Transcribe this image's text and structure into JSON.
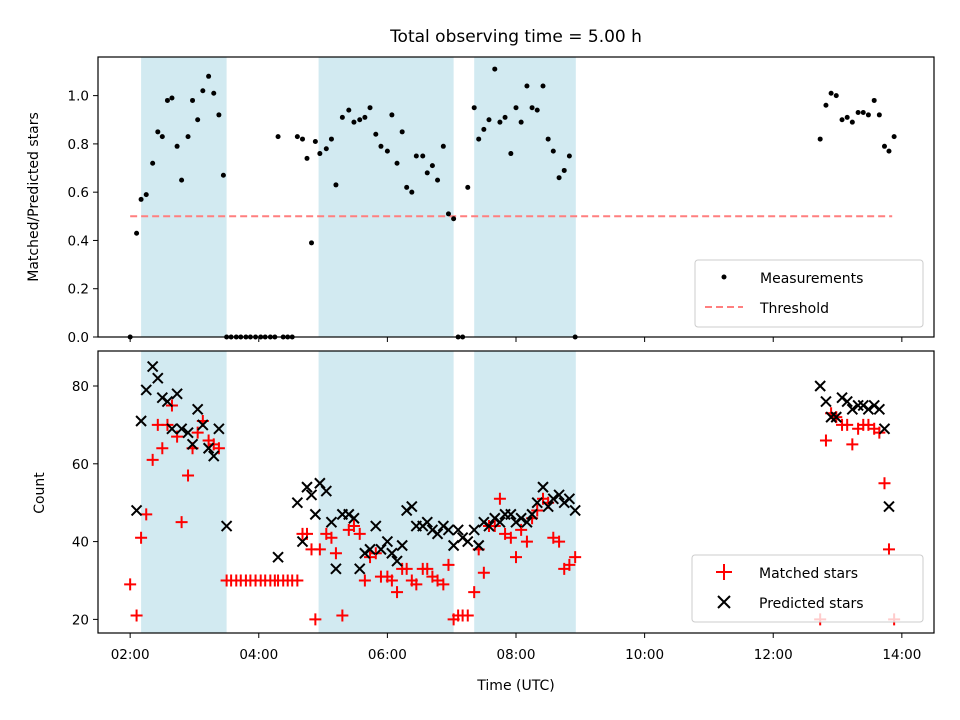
{
  "chart_data": {
    "title": "Total observing time = 5.00 h",
    "xlabel": "Time (UTC)",
    "x_ticks": [
      "02:00",
      "04:00",
      "06:00",
      "08:00",
      "10:00",
      "12:00",
      "14:00"
    ],
    "xlim_hours": [
      1.5,
      14.5
    ],
    "shaded_intervals_hours": [
      [
        2.17,
        3.5
      ],
      [
        4.93,
        7.03
      ],
      [
        7.35,
        8.93
      ]
    ],
    "shade_color": "#add8e6",
    "charts": [
      {
        "type": "scatter",
        "ylabel": "Matched/Predicted stars",
        "ylim": [
          0,
          1.16
        ],
        "y_ticks": [
          "0.0",
          "0.2",
          "0.4",
          "0.6",
          "0.8",
          "1.0"
        ],
        "legend_position": "lower-right",
        "threshold": {
          "name": "Threshold",
          "value": 0.5,
          "x_range_hours": [
            2.0,
            13.85
          ],
          "color": "#ff7f7f"
        },
        "series": [
          {
            "name": "Measurements",
            "color": "#000000",
            "x_hours": [
              2.0,
              2.1,
              2.17,
              2.25,
              2.35,
              2.43,
              2.5,
              2.58,
              2.65,
              2.73,
              2.8,
              2.9,
              2.97,
              3.05,
              3.13,
              3.22,
              3.3,
              3.38,
              3.45,
              3.5,
              3.57,
              3.65,
              3.72,
              3.8,
              3.87,
              3.95,
              4.03,
              4.1,
              4.18,
              4.25,
              4.3,
              4.38,
              4.45,
              4.52,
              4.6,
              4.68,
              4.75,
              4.82,
              4.88,
              4.95,
              5.05,
              5.13,
              5.2,
              5.3,
              5.4,
              5.48,
              5.57,
              5.65,
              5.73,
              5.82,
              5.9,
              6.0,
              6.07,
              6.15,
              6.23,
              6.3,
              6.38,
              6.45,
              6.55,
              6.62,
              6.7,
              6.78,
              6.87,
              6.95,
              7.03,
              7.1,
              7.17,
              7.25,
              7.35,
              7.42,
              7.5,
              7.58,
              7.67,
              7.75,
              7.83,
              7.92,
              8.0,
              8.08,
              8.17,
              8.25,
              8.33,
              8.42,
              8.5,
              8.58,
              8.67,
              8.75,
              8.83,
              8.92,
              12.73,
              12.82,
              12.9,
              12.98,
              13.07,
              13.15,
              13.23,
              13.32,
              13.4,
              13.48,
              13.57,
              13.65,
              13.73,
              13.8,
              13.88
            ],
            "y": [
              0.0,
              0.43,
              0.57,
              0.59,
              0.72,
              0.85,
              0.83,
              0.98,
              0.99,
              0.79,
              0.65,
              0.83,
              0.98,
              0.9,
              1.02,
              1.08,
              1.01,
              0.92,
              0.67,
              0.0,
              0.0,
              0.0,
              0.0,
              0.0,
              0.0,
              0.0,
              0.0,
              0.0,
              0.0,
              0.0,
              0.83,
              0.0,
              0.0,
              0.0,
              0.83,
              0.82,
              0.74,
              0.39,
              0.81,
              0.76,
              0.78,
              0.82,
              0.63,
              0.91,
              0.94,
              0.89,
              0.9,
              0.91,
              0.95,
              0.84,
              0.79,
              0.77,
              0.92,
              0.72,
              0.85,
              0.62,
              0.6,
              0.75,
              0.75,
              0.68,
              0.71,
              0.65,
              0.79,
              0.51,
              0.49,
              0.0,
              0.0,
              0.62,
              0.95,
              0.82,
              0.86,
              0.9,
              1.11,
              0.89,
              0.91,
              0.76,
              0.95,
              0.89,
              1.04,
              0.95,
              0.94,
              1.04,
              0.82,
              0.77,
              0.66,
              0.69,
              0.75,
              0.0,
              0.82,
              0.96,
              1.01,
              1.0,
              0.9,
              0.91,
              0.89,
              0.93,
              0.93,
              0.92,
              0.98,
              0.92,
              0.79,
              0.77,
              0.83
            ]
          }
        ]
      },
      {
        "type": "scatter",
        "ylabel": "Count",
        "ylim": [
          16.5,
          89
        ],
        "y_ticks": [
          "20",
          "40",
          "60",
          "80"
        ],
        "legend_position": "lower-right",
        "series": [
          {
            "name": "Matched stars",
            "color": "#ff0000",
            "marker": "plus",
            "x_hours": [
              2.0,
              2.1,
              2.17,
              2.25,
              2.35,
              2.43,
              2.5,
              2.58,
              2.65,
              2.73,
              2.8,
              2.9,
              2.97,
              3.05,
              3.13,
              3.22,
              3.3,
              3.38,
              3.5,
              3.57,
              3.65,
              3.72,
              3.8,
              3.87,
              3.95,
              4.03,
              4.1,
              4.18,
              4.25,
              4.3,
              4.38,
              4.45,
              4.52,
              4.6,
              4.68,
              4.75,
              4.82,
              4.88,
              4.95,
              5.05,
              5.13,
              5.2,
              5.3,
              5.4,
              5.48,
              5.57,
              5.65,
              5.73,
              5.82,
              5.9,
              6.0,
              6.07,
              6.15,
              6.23,
              6.3,
              6.38,
              6.45,
              6.55,
              6.62,
              6.7,
              6.78,
              6.87,
              6.95,
              7.03,
              7.1,
              7.17,
              7.25,
              7.35,
              7.42,
              7.5,
              7.58,
              7.67,
              7.75,
              7.83,
              7.92,
              8.0,
              8.08,
              8.17,
              8.25,
              8.33,
              8.42,
              8.5,
              8.58,
              8.67,
              8.75,
              8.83,
              8.92,
              12.73,
              12.82,
              12.9,
              12.98,
              13.07,
              13.15,
              13.23,
              13.32,
              13.4,
              13.48,
              13.57,
              13.65,
              13.73,
              13.8,
              13.88
            ],
            "y": [
              29,
              21,
              41,
              47,
              61,
              70,
              64,
              70,
              75,
              67,
              45,
              57,
              64,
              68,
              71,
              66,
              65,
              64,
              30,
              30,
              30,
              30,
              30,
              30,
              30,
              30,
              30,
              30,
              30,
              30,
              30,
              30,
              30,
              30,
              42,
              42,
              38,
              20,
              38,
              42,
              41,
              37,
              21,
              43,
              44,
              42,
              30,
              36,
              37,
              31,
              31,
              30,
              27,
              33,
              33,
              30,
              29,
              33,
              33,
              31,
              30,
              29,
              34,
              20,
              21,
              21,
              21,
              27,
              38,
              32,
              44,
              44,
              51,
              42,
              41,
              36,
              43,
              40,
              46,
              48,
              51,
              50,
              41,
              40,
              33,
              34,
              36,
              20,
              66,
              73,
              72,
              70,
              70,
              65,
              69,
              70,
              70,
              69,
              68,
              55,
              38,
              20
            ]
          },
          {
            "name": "Predicted stars",
            "color": "#000000",
            "marker": "cross",
            "x_hours": [
              2.1,
              2.17,
              2.25,
              2.35,
              2.43,
              2.5,
              2.58,
              2.65,
              2.73,
              2.8,
              2.9,
              2.97,
              3.05,
              3.13,
              3.22,
              3.3,
              3.38,
              3.5,
              4.3,
              4.6,
              4.68,
              4.75,
              4.82,
              4.88,
              4.95,
              5.05,
              5.13,
              5.2,
              5.3,
              5.4,
              5.48,
              5.57,
              5.65,
              5.73,
              5.82,
              5.9,
              6.0,
              6.07,
              6.15,
              6.23,
              6.3,
              6.38,
              6.45,
              6.55,
              6.62,
              6.7,
              6.78,
              6.87,
              6.95,
              7.03,
              7.1,
              7.17,
              7.25,
              7.35,
              7.42,
              7.5,
              7.58,
              7.67,
              7.75,
              7.83,
              7.92,
              8.0,
              8.08,
              8.17,
              8.25,
              8.33,
              8.42,
              8.5,
              8.58,
              8.67,
              8.75,
              8.83,
              8.92,
              12.73,
              12.82,
              12.9,
              12.98,
              13.07,
              13.15,
              13.23,
              13.32,
              13.4,
              13.48,
              13.57,
              13.65,
              13.73,
              13.8
            ],
            "y": [
              48,
              71,
              79,
              85,
              82,
              77,
              76,
              69,
              78,
              69,
              68,
              65,
              74,
              70,
              64,
              62,
              69,
              44,
              36,
              50,
              40,
              54,
              52,
              47,
              55,
              53,
              45,
              33,
              47,
              47,
              46,
              33,
              37,
              38,
              44,
              38,
              40,
              37,
              35,
              39,
              48,
              49,
              44,
              44,
              45,
              43,
              42,
              44,
              43,
              39,
              43,
              41,
              40,
              43,
              39,
              45,
              44,
              46,
              45,
              47,
              47,
              45,
              46,
              45,
              47,
              50,
              54,
              49,
              51,
              52,
              50,
              51,
              48,
              80,
              76,
              72,
              72,
              77,
              76,
              74,
              75,
              75,
              74,
              75,
              74,
              69,
              49
            ]
          }
        ]
      }
    ]
  }
}
